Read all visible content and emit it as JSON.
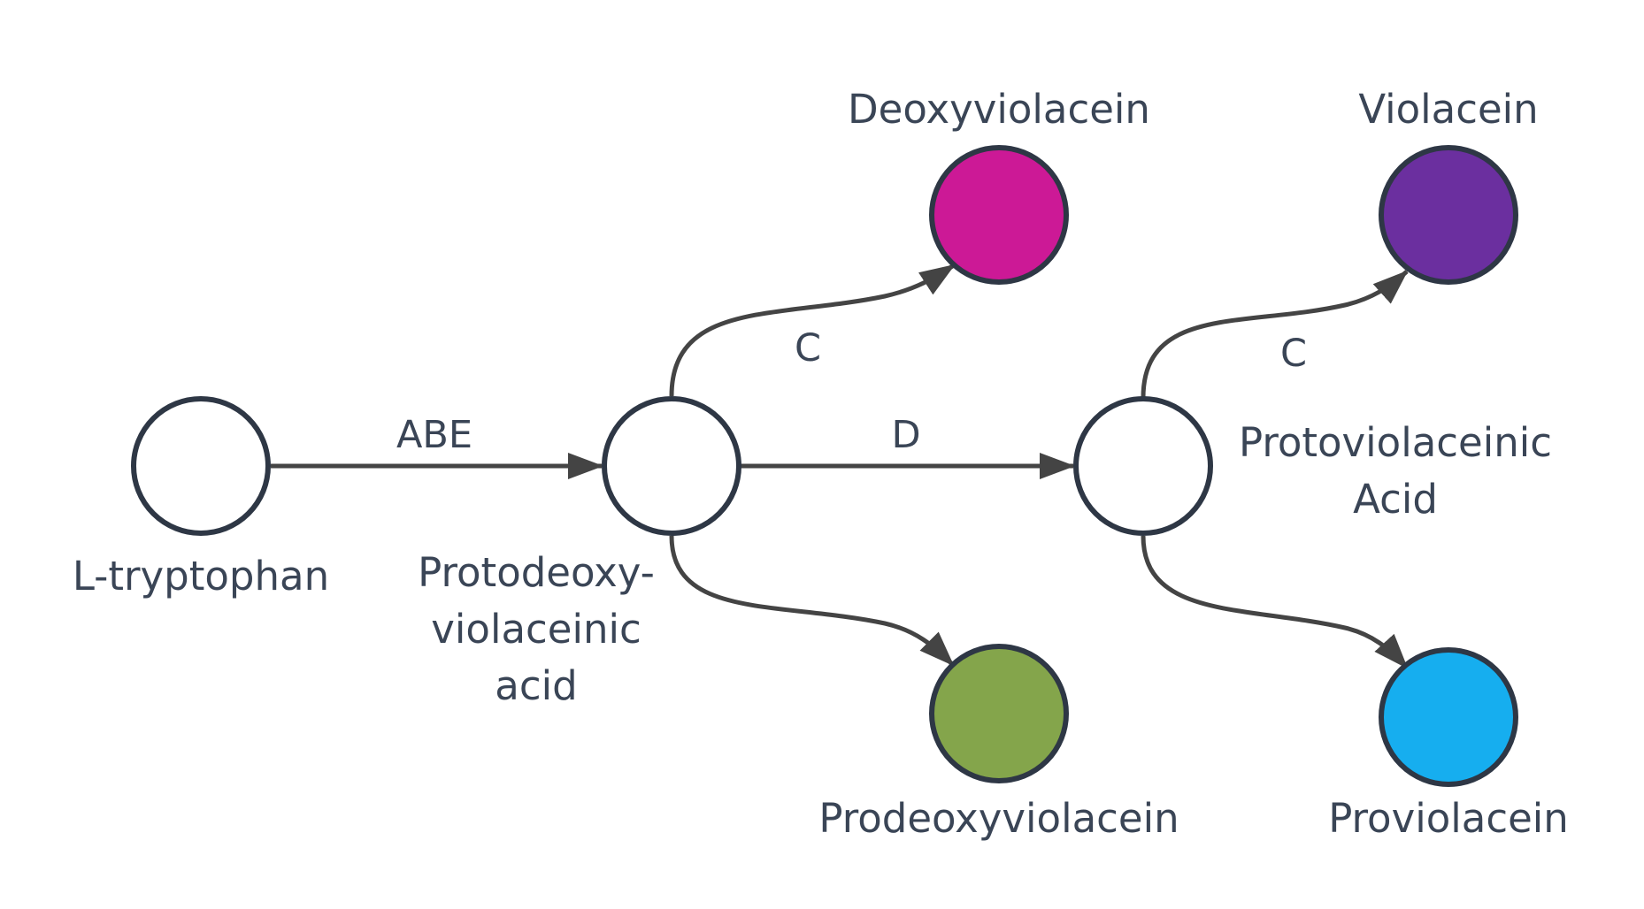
{
  "nodes": {
    "tryptophan": {
      "label_lines": [
        "L-tryptophan"
      ],
      "fill": "#ffffff"
    },
    "protodeoxy": {
      "label_lines": [
        "Protodeoxy-",
        "violaceinic",
        "acid"
      ],
      "fill": "#ffffff"
    },
    "protoviolaceinic": {
      "label_lines": [
        "Protoviolaceinic",
        "Acid"
      ],
      "fill": "#ffffff"
    },
    "deoxyviolacein": {
      "label_lines": [
        "Deoxyviolacein"
      ],
      "fill": "#cc1996"
    },
    "prodeoxyviolacein": {
      "label_lines": [
        "Prodeoxyviolacein"
      ],
      "fill": "#84a54b"
    },
    "violacein": {
      "label_lines": [
        "Violacein"
      ],
      "fill": "#6b2f9f"
    },
    "proviolacein": {
      "label_lines": [
        "Proviolacein"
      ],
      "fill": "#16aeef"
    }
  },
  "edges": {
    "abe": {
      "label": "ABE"
    },
    "d": {
      "label": "D"
    },
    "c1": {
      "label": "C"
    },
    "c2": {
      "label": "C"
    }
  },
  "colors": {
    "edge": "#444444",
    "node_stroke": "#2e3745",
    "text": "#3a4556"
  }
}
